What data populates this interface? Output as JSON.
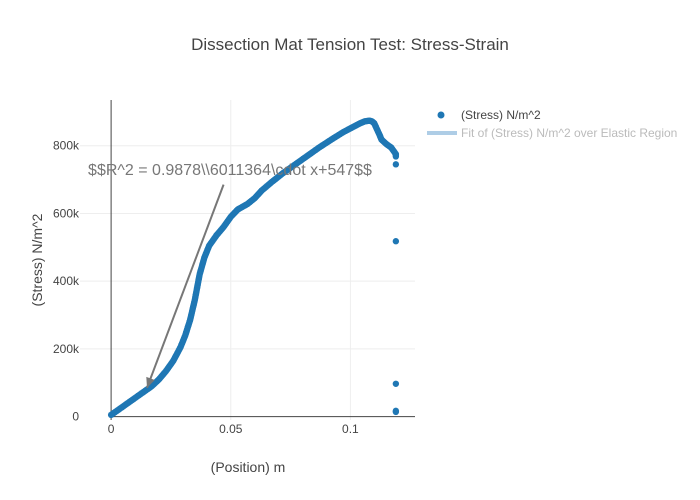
{
  "chart_data": {
    "type": "scatter",
    "title": "Dissection Mat Tension Test: Stress-Strain",
    "xlabel": "(Position) m",
    "ylabel": "(Stress) N/m^2",
    "xlim": [
      -0.013,
      0.127
    ],
    "ylim": [
      -10000,
      935000
    ],
    "x_ticks": [
      {
        "value": 0,
        "label": "0"
      },
      {
        "value": 0.05,
        "label": "0.05"
      },
      {
        "value": 0.1,
        "label": "0.1"
      }
    ],
    "y_ticks": [
      {
        "value": 0,
        "label": "0"
      },
      {
        "value": 200000,
        "label": "200k"
      },
      {
        "value": 400000,
        "label": "400k"
      },
      {
        "value": 600000,
        "label": "600k"
      },
      {
        "value": 800000,
        "label": "800k"
      }
    ],
    "grid": true,
    "legend_position": "top-right",
    "series": [
      {
        "name": "(Stress) N/m^2",
        "kind": "markers",
        "color": "#1f77b4",
        "curve_points": [
          [
            0,
            5000
          ],
          [
            0.002,
            15000
          ],
          [
            0.005,
            30000
          ],
          [
            0.008,
            45000
          ],
          [
            0.011,
            60000
          ],
          [
            0.014,
            75000
          ],
          [
            0.017,
            90000
          ],
          [
            0.02,
            110000
          ],
          [
            0.023,
            135000
          ],
          [
            0.026,
            165000
          ],
          [
            0.029,
            205000
          ],
          [
            0.031,
            240000
          ],
          [
            0.033,
            285000
          ],
          [
            0.035,
            345000
          ],
          [
            0.037,
            420000
          ],
          [
            0.039,
            470000
          ],
          [
            0.041,
            505000
          ],
          [
            0.044,
            535000
          ],
          [
            0.047,
            560000
          ],
          [
            0.05,
            590000
          ],
          [
            0.053,
            612000
          ],
          [
            0.057,
            628000
          ],
          [
            0.06,
            645000
          ],
          [
            0.063,
            668000
          ],
          [
            0.067,
            692000
          ],
          [
            0.072,
            720000
          ],
          [
            0.077,
            745000
          ],
          [
            0.082,
            770000
          ],
          [
            0.087,
            795000
          ],
          [
            0.092,
            818000
          ],
          [
            0.097,
            840000
          ],
          [
            0.101,
            855000
          ],
          [
            0.104,
            866000
          ],
          [
            0.106,
            872000
          ],
          [
            0.108,
            874000
          ],
          [
            0.109,
            872000
          ],
          [
            0.11,
            866000
          ],
          [
            0.111,
            850000
          ],
          [
            0.112,
            835000
          ],
          [
            0.113,
            818000
          ],
          [
            0.115,
            805000
          ],
          [
            0.117,
            795000
          ],
          [
            0.118,
            785000
          ],
          [
            0.119,
            775000
          ],
          [
            0.119,
            765000
          ]
        ],
        "outliers": [
          [
            0.119,
            745000
          ],
          [
            0.119,
            518000
          ],
          [
            0.119,
            97000
          ],
          [
            0.119,
            17000
          ],
          [
            0.119,
            14000
          ]
        ]
      },
      {
        "name": "Fit of (Stress) N/m^2 over Elastic Region",
        "kind": "line",
        "color": "#aecde6",
        "visible": "legendonly"
      }
    ],
    "annotation": {
      "text": "$$R^2 = 0.9878\\\\6011364\\cdot x+547$$",
      "arrow_tail": [
        0.047,
        685000
      ],
      "arrow_head": [
        0.015,
        85000
      ],
      "color": "#777777"
    }
  }
}
